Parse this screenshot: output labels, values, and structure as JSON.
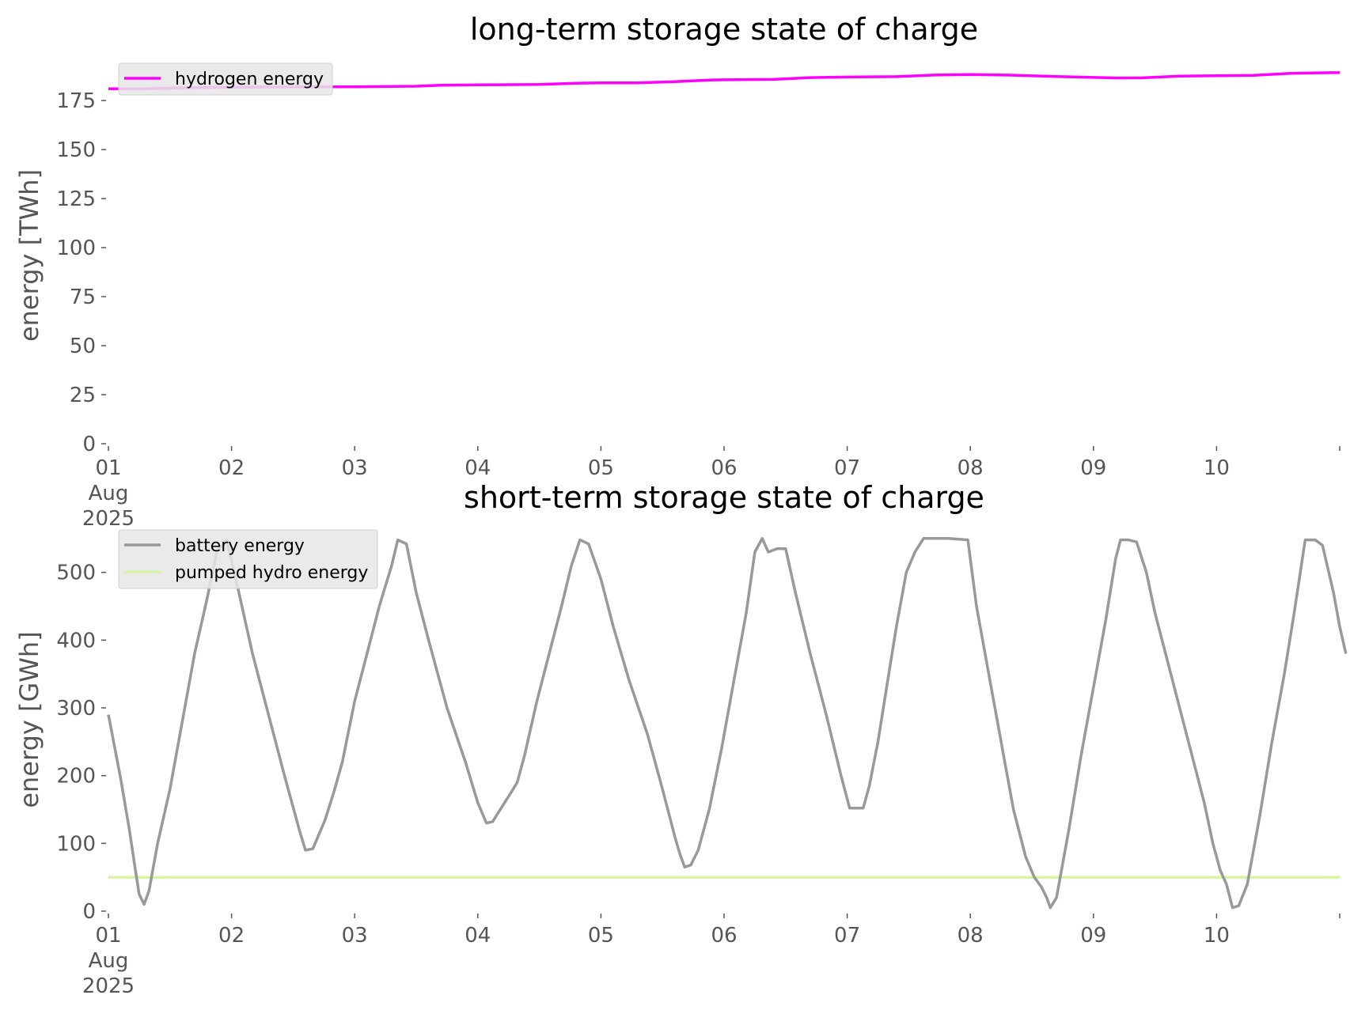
{
  "chart_data": [
    {
      "type": "line",
      "title": "long-term storage state of charge",
      "ylabel": "energy [TWh]",
      "xlabel": "",
      "xlim": [
        0,
        10
      ],
      "ylim": [
        0,
        192
      ],
      "yticks": [
        0,
        25,
        50,
        75,
        100,
        125,
        150,
        175
      ],
      "xticks": [
        {
          "x": 0,
          "lines": [
            "01",
            "Aug",
            "2025"
          ]
        },
        {
          "x": 1,
          "lines": [
            "02"
          ]
        },
        {
          "x": 2,
          "lines": [
            "03"
          ]
        },
        {
          "x": 3,
          "lines": [
            "04"
          ]
        },
        {
          "x": 4,
          "lines": [
            "05"
          ]
        },
        {
          "x": 5,
          "lines": [
            "06"
          ]
        },
        {
          "x": 6,
          "lines": [
            "07"
          ]
        },
        {
          "x": 7,
          "lines": [
            "08"
          ]
        },
        {
          "x": 8,
          "lines": [
            "09"
          ]
        },
        {
          "x": 9,
          "lines": [
            "10"
          ]
        }
      ],
      "legend_position": "top-left",
      "grid": false,
      "series": [
        {
          "name": "hydrogen energy",
          "color": "#ff00ff",
          "points": [
            [
              0,
              181
            ],
            [
              0.3,
              181
            ],
            [
              0.6,
              181.5
            ],
            [
              1,
              181.8
            ],
            [
              1.5,
              182
            ],
            [
              2,
              182
            ],
            [
              2.5,
              182.3
            ],
            [
              2.7,
              182.8
            ],
            [
              3,
              183
            ],
            [
              3.5,
              183.2
            ],
            [
              3.8,
              183.8
            ],
            [
              4,
              184
            ],
            [
              4.3,
              184
            ],
            [
              4.6,
              184.6
            ],
            [
              4.9,
              185.5
            ],
            [
              5,
              185.6
            ],
            [
              5.4,
              185.8
            ],
            [
              5.7,
              186.7
            ],
            [
              6,
              187
            ],
            [
              6.4,
              187.2
            ],
            [
              6.7,
              188
            ],
            [
              7,
              188.3
            ],
            [
              7.3,
              188
            ],
            [
              7.7,
              187.3
            ],
            [
              8,
              186.8
            ],
            [
              8.2,
              186.5
            ],
            [
              8.4,
              186.6
            ],
            [
              8.7,
              187.5
            ],
            [
              9,
              187.7
            ],
            [
              9.3,
              187.9
            ],
            [
              9.6,
              188.9
            ],
            [
              10,
              189.3
            ]
          ]
        }
      ]
    },
    {
      "type": "line",
      "title": "short-term storage state of charge",
      "ylabel": "energy [GWh]",
      "xlabel": "",
      "xlim": [
        0,
        10
      ],
      "ylim": [
        0,
        565
      ],
      "yticks": [
        0,
        100,
        200,
        300,
        400,
        500
      ],
      "xticks": [
        {
          "x": 0,
          "lines": [
            "01",
            "Aug",
            "2025"
          ]
        },
        {
          "x": 1,
          "lines": [
            "02"
          ]
        },
        {
          "x": 2,
          "lines": [
            "03"
          ]
        },
        {
          "x": 3,
          "lines": [
            "04"
          ]
        },
        {
          "x": 4,
          "lines": [
            "05"
          ]
        },
        {
          "x": 5,
          "lines": [
            "06"
          ]
        },
        {
          "x": 6,
          "lines": [
            "07"
          ]
        },
        {
          "x": 7,
          "lines": [
            "08"
          ]
        },
        {
          "x": 8,
          "lines": [
            "09"
          ]
        },
        {
          "x": 9,
          "lines": [
            "10"
          ]
        }
      ],
      "legend_position": "top-left",
      "grid": false,
      "series": [
        {
          "name": "battery energy",
          "color": "#999999",
          "points": [
            [
              0,
              290
            ],
            [
              0.1,
              195
            ],
            [
              0.17,
              120
            ],
            [
              0.22,
              60
            ],
            [
              0.25,
              25
            ],
            [
              0.29,
              10
            ],
            [
              0.33,
              30
            ],
            [
              0.4,
              100
            ],
            [
              0.5,
              180
            ],
            [
              0.6,
              280
            ],
            [
              0.7,
              380
            ],
            [
              0.8,
              460
            ],
            [
              0.88,
              530
            ],
            [
              0.96,
              548
            ],
            [
              1.06,
              470
            ],
            [
              1.17,
              380
            ],
            [
              1.3,
              290
            ],
            [
              1.43,
              200
            ],
            [
              1.55,
              120
            ],
            [
              1.6,
              90
            ],
            [
              1.66,
              92
            ],
            [
              1.76,
              135
            ],
            [
              1.83,
              175
            ],
            [
              1.9,
              220
            ],
            [
              2.0,
              310
            ],
            [
              2.1,
              380
            ],
            [
              2.2,
              450
            ],
            [
              2.3,
              510
            ],
            [
              2.35,
              548
            ],
            [
              2.42,
              542
            ],
            [
              2.5,
              470
            ],
            [
              2.6,
              400
            ],
            [
              2.75,
              300
            ],
            [
              2.9,
              220
            ],
            [
              3.0,
              160
            ],
            [
              3.07,
              130
            ],
            [
              3.12,
              132
            ],
            [
              3.2,
              155
            ],
            [
              3.27,
              175
            ],
            [
              3.32,
              190
            ],
            [
              3.38,
              230
            ],
            [
              3.48,
              310
            ],
            [
              3.58,
              380
            ],
            [
              3.68,
              450
            ],
            [
              3.76,
              510
            ],
            [
              3.83,
              548
            ],
            [
              3.9,
              542
            ],
            [
              4.0,
              490
            ],
            [
              4.1,
              420
            ],
            [
              4.23,
              340
            ],
            [
              4.38,
              260
            ],
            [
              4.5,
              180
            ],
            [
              4.6,
              110
            ],
            [
              4.64,
              85
            ],
            [
              4.68,
              65
            ],
            [
              4.73,
              68
            ],
            [
              4.79,
              90
            ],
            [
              4.88,
              150
            ],
            [
              4.98,
              240
            ],
            [
              5.08,
              340
            ],
            [
              5.18,
              440
            ],
            [
              5.25,
              530
            ],
            [
              5.31,
              550
            ],
            [
              5.36,
              530
            ],
            [
              5.43,
              535
            ],
            [
              5.5,
              535
            ],
            [
              5.58,
              470
            ],
            [
              5.7,
              380
            ],
            [
              5.83,
              290
            ],
            [
              5.95,
              200
            ],
            [
              6.02,
              152
            ],
            [
              6.08,
              152
            ],
            [
              6.13,
              152
            ],
            [
              6.18,
              185
            ],
            [
              6.25,
              250
            ],
            [
              6.32,
              330
            ],
            [
              6.4,
              420
            ],
            [
              6.48,
              500
            ],
            [
              6.55,
              530
            ],
            [
              6.62,
              550
            ],
            [
              6.72,
              550
            ],
            [
              6.82,
              550
            ],
            [
              6.98,
              548
            ],
            [
              7.05,
              450
            ],
            [
              7.15,
              350
            ],
            [
              7.25,
              250
            ],
            [
              7.35,
              150
            ],
            [
              7.45,
              80
            ],
            [
              7.52,
              50
            ],
            [
              7.58,
              35
            ],
            [
              7.62,
              20
            ],
            [
              7.65,
              5
            ],
            [
              7.7,
              20
            ],
            [
              7.8,
              120
            ],
            [
              7.9,
              230
            ],
            [
              8.0,
              330
            ],
            [
              8.1,
              430
            ],
            [
              8.18,
              520
            ],
            [
              8.22,
              548
            ],
            [
              8.28,
              548
            ],
            [
              8.35,
              545
            ],
            [
              8.43,
              500
            ],
            [
              8.5,
              440
            ],
            [
              8.6,
              370
            ],
            [
              8.7,
              300
            ],
            [
              8.8,
              230
            ],
            [
              8.9,
              160
            ],
            [
              8.97,
              100
            ],
            [
              9.03,
              60
            ],
            [
              9.08,
              40
            ],
            [
              9.13,
              5
            ],
            [
              9.18,
              8
            ],
            [
              9.25,
              40
            ],
            [
              9.35,
              140
            ],
            [
              9.45,
              250
            ],
            [
              9.55,
              350
            ],
            [
              9.63,
              440
            ],
            [
              9.68,
              500
            ],
            [
              9.72,
              548
            ],
            [
              9.8,
              548
            ],
            [
              9.86,
              540
            ],
            [
              9.95,
              470
            ],
            [
              10.0,
              420
            ],
            [
              10.05,
              380
            ]
          ]
        },
        {
          "name": "pumped hydro energy",
          "color": "#d8f5a2",
          "points": [
            [
              0,
              50
            ],
            [
              1,
              50
            ],
            [
              2,
              50
            ],
            [
              3,
              50
            ],
            [
              4,
              50
            ],
            [
              5,
              50
            ],
            [
              6,
              50
            ],
            [
              7,
              50
            ],
            [
              8,
              50
            ],
            [
              9,
              50
            ],
            [
              10,
              50
            ]
          ]
        }
      ]
    }
  ]
}
